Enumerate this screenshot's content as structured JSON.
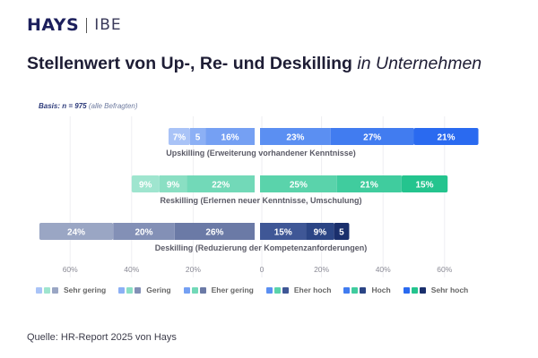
{
  "header": {
    "logo_primary": "HAYS",
    "logo_secondary": "IBE"
  },
  "title": {
    "bold": "Stellenwert von Up-, Re- und Deskilling",
    "italic": "in Unternehmen"
  },
  "basis": {
    "bold": "Basis: n = 975",
    "note": "(alle Befragten)"
  },
  "source": "Quelle: HR-Report 2025 von Hays",
  "chart_data": {
    "type": "bar",
    "subtype": "diverging-stacked-horizontal",
    "title": "Stellenwert von Up-, Re- und Deskilling in Unternehmen",
    "categories": [
      "Upskilling (Erweiterung vorhandener Kenntnisse)",
      "Reskilling (Erlernen neuer Kenntnisse, Umschulung)",
      "Deskilling (Reduzierung der Kompetenzanforderungen)"
    ],
    "negative_series": [
      "Sehr gering",
      "Gering",
      "Eher gering"
    ],
    "positive_series": [
      "Eher hoch",
      "Hoch",
      "Sehr hoch"
    ],
    "series": [
      {
        "name": "Sehr gering",
        "values": [
          7,
          9,
          24
        ],
        "labels": [
          "7%",
          "9%",
          "24%"
        ]
      },
      {
        "name": "Gering",
        "values": [
          5,
          9,
          20
        ],
        "labels": [
          "5",
          "9%",
          "20%"
        ]
      },
      {
        "name": "Eher gering",
        "values": [
          16,
          22,
          26
        ],
        "labels": [
          "16%",
          "22%",
          "26%"
        ]
      },
      {
        "name": "Eher hoch",
        "values": [
          23,
          25,
          15
        ],
        "labels": [
          "23%",
          "25%",
          "15%"
        ]
      },
      {
        "name": "Hoch",
        "values": [
          27,
          21,
          9
        ],
        "labels": [
          "27%",
          "21%",
          "9%"
        ]
      },
      {
        "name": "Sehr hoch",
        "values": [
          21,
          15,
          5
        ],
        "labels": [
          "21%",
          "15%",
          "5"
        ]
      }
    ],
    "colors": {
      "Upskilling": [
        "#a9c3f7",
        "#8cb0f5",
        "#75a0f3",
        "#5b8ff2",
        "#417cf0",
        "#2a6af0"
      ],
      "Reskilling": [
        "#9fe5cf",
        "#8adfc3",
        "#72d9b8",
        "#5ad3ab",
        "#40cc9e",
        "#24c48e"
      ],
      "Deskilling": [
        "#9aa6c4",
        "#8390b6",
        "#6b7aa6",
        "#3f5796",
        "#2b4585",
        "#1a2f6c"
      ]
    },
    "xaxis": {
      "ticks": [
        "60%",
        "40%",
        "20%",
        "0",
        "20%",
        "40%",
        "60%"
      ],
      "tick_values": [
        -60,
        -40,
        -20,
        0,
        20,
        40,
        60
      ]
    },
    "xlim": [
      -70,
      71
    ],
    "grid": true,
    "legend": {
      "position": "bottom",
      "entries": [
        "Sehr gering",
        "Gering",
        "Eher gering",
        "Eher hoch",
        "Hoch",
        "Sehr hoch"
      ]
    }
  }
}
